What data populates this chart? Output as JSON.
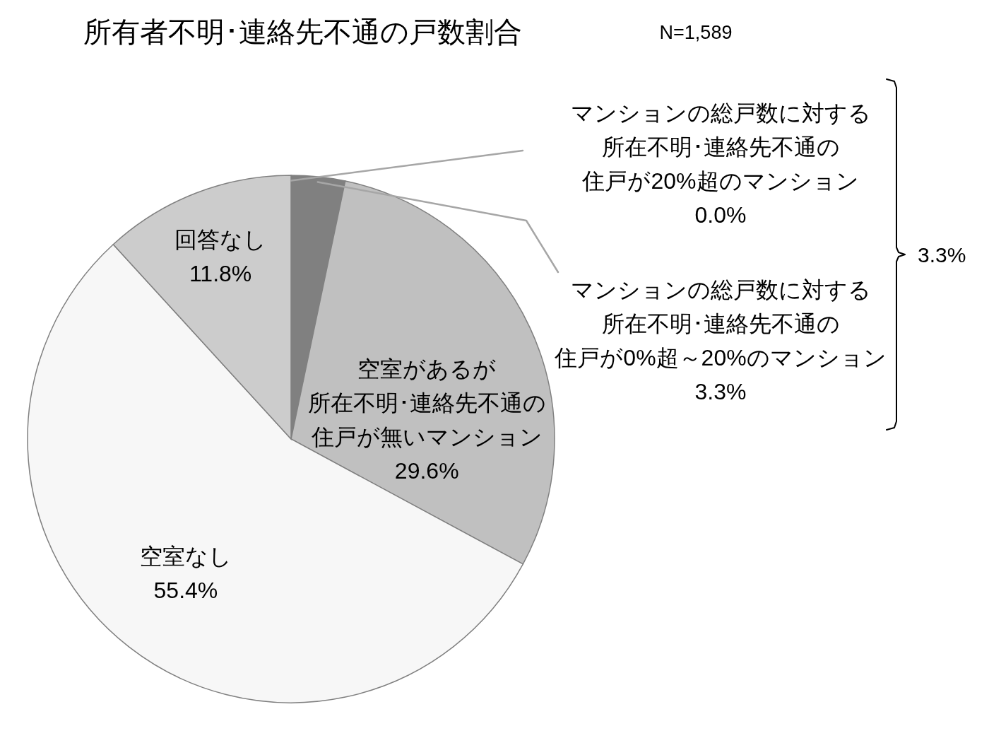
{
  "chart_data": {
    "type": "pie",
    "title": "所有者不明･連絡先不通の戸数割合",
    "subtitle": "N=1,589",
    "categories": [
      "マンションの総戸数に対する所在不明･連絡先不通の住戸が20%超のマンション",
      "マンションの総戸数に対する所在不明･連絡先不通の住戸が0%超～20%のマンション",
      "空室があるが所在不明･連絡先不通の住戸が無いマンション",
      "空室なし",
      "回答なし"
    ],
    "values": [
      0.0,
      3.3,
      29.6,
      55.4,
      11.8
    ],
    "colors": [
      "#595959",
      "#808080",
      "#c0c0c0",
      "#f7f7f7",
      "#cccccc"
    ],
    "value_labels": [
      "0.0%",
      "3.3%",
      "29.6%",
      "55.4%",
      "11.8%"
    ],
    "annotations": [
      "3.3%"
    ]
  }
}
